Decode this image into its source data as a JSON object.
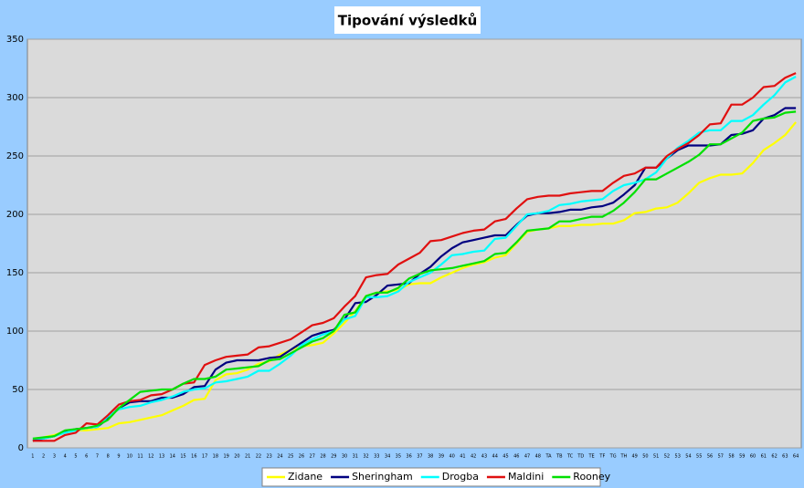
{
  "chart_data": {
    "type": "line",
    "title": "Tipování výsledků",
    "categories": [
      "1",
      "2",
      "3",
      "4",
      "5",
      "6",
      "7",
      "8",
      "9",
      "10",
      "11",
      "12",
      "13",
      "14",
      "15",
      "16",
      "17",
      "18",
      "19",
      "20",
      "21",
      "22",
      "23",
      "24",
      "25",
      "26",
      "27",
      "28",
      "29",
      "30",
      "31",
      "32",
      "33",
      "34",
      "35",
      "36",
      "37",
      "38",
      "39",
      "40",
      "41",
      "42",
      "43",
      "44",
      "45",
      "46",
      "47",
      "48",
      "TA",
      "TB",
      "TC",
      "TD",
      "TE",
      "TF",
      "TG",
      "TH",
      "49",
      "50",
      "51",
      "52",
      "53",
      "54",
      "55",
      "56",
      "57",
      "58",
      "59",
      "60",
      "61",
      "62",
      "63",
      "64"
    ],
    "ylim": [
      0,
      350
    ],
    "yticks": [
      0,
      50,
      100,
      150,
      200,
      250,
      300,
      350
    ],
    "grid": true,
    "series": [
      {
        "name": "Zidane",
        "color": "#ffff00",
        "values": [
          6,
          9,
          11,
          14,
          15,
          15,
          16,
          17,
          21,
          22,
          24,
          26,
          28,
          32,
          36,
          41,
          42,
          58,
          63,
          64,
          67,
          72,
          74,
          80,
          84,
          87,
          88,
          90,
          98,
          107,
          117,
          130,
          133,
          134,
          135,
          140,
          141,
          141,
          146,
          150,
          154,
          157,
          159,
          163,
          165,
          175,
          185,
          187,
          188,
          190,
          190,
          191,
          191,
          192,
          192,
          195,
          201,
          202,
          205,
          206,
          210,
          218,
          227,
          231,
          234,
          234,
          235,
          244,
          255,
          261,
          268,
          279
        ]
      },
      {
        "name": "Sheringham",
        "color": "#000080",
        "values": [
          6,
          8,
          10,
          14,
          16,
          17,
          18,
          25,
          34,
          39,
          40,
          40,
          43,
          43,
          46,
          52,
          53,
          67,
          73,
          75,
          75,
          75,
          77,
          78,
          84,
          90,
          96,
          99,
          101,
          110,
          124,
          125,
          131,
          139,
          140,
          141,
          149,
          155,
          164,
          171,
          176,
          178,
          180,
          182,
          182,
          191,
          199,
          201,
          201,
          202,
          204,
          204,
          206,
          207,
          210,
          217,
          225,
          240,
          240,
          248,
          255,
          259,
          259,
          259,
          260,
          268,
          269,
          272,
          282,
          285,
          291,
          291
        ]
      },
      {
        "name": "Drogba",
        "color": "#00ffff",
        "values": [
          8,
          8,
          10,
          13,
          15,
          17,
          18,
          27,
          33,
          35,
          36,
          39,
          41,
          44,
          48,
          50,
          51,
          56,
          57,
          59,
          61,
          66,
          66,
          72,
          79,
          88,
          93,
          97,
          100,
          110,
          113,
          129,
          129,
          130,
          134,
          142,
          146,
          150,
          157,
          165,
          166,
          168,
          169,
          179,
          180,
          190,
          200,
          201,
          203,
          208,
          209,
          211,
          212,
          213,
          220,
          225,
          227,
          230,
          236,
          248,
          257,
          263,
          270,
          272,
          272,
          280,
          280,
          285,
          294,
          302,
          313,
          318
        ]
      },
      {
        "name": "Maldini",
        "color": "#e01010",
        "values": [
          6,
          6,
          6,
          11,
          13,
          21,
          20,
          28,
          37,
          40,
          41,
          45,
          46,
          50,
          55,
          56,
          71,
          75,
          78,
          79,
          80,
          86,
          87,
          90,
          93,
          99,
          105,
          107,
          111,
          121,
          130,
          146,
          148,
          149,
          157,
          162,
          167,
          177,
          178,
          181,
          184,
          186,
          187,
          194,
          196,
          205,
          213,
          215,
          216,
          216,
          218,
          219,
          220,
          220,
          227,
          233,
          235,
          240,
          240,
          250,
          256,
          261,
          268,
          277,
          278,
          294,
          294,
          300,
          309,
          310,
          317,
          321
        ]
      },
      {
        "name": "Rooney",
        "color": "#00e000",
        "values": [
          8,
          9,
          10,
          15,
          16,
          17,
          19,
          24,
          34,
          41,
          48,
          49,
          50,
          50,
          55,
          59,
          59,
          61,
          67,
          68,
          69,
          70,
          75,
          76,
          81,
          86,
          91,
          94,
          100,
          114,
          116,
          130,
          133,
          133,
          137,
          145,
          149,
          152,
          153,
          154,
          156,
          158,
          160,
          166,
          167,
          176,
          186,
          187,
          188,
          194,
          194,
          196,
          198,
          198,
          203,
          210,
          219,
          230,
          230,
          235,
          240,
          245,
          251,
          260,
          260,
          265,
          270,
          280,
          282,
          283,
          287,
          288
        ]
      }
    ]
  }
}
